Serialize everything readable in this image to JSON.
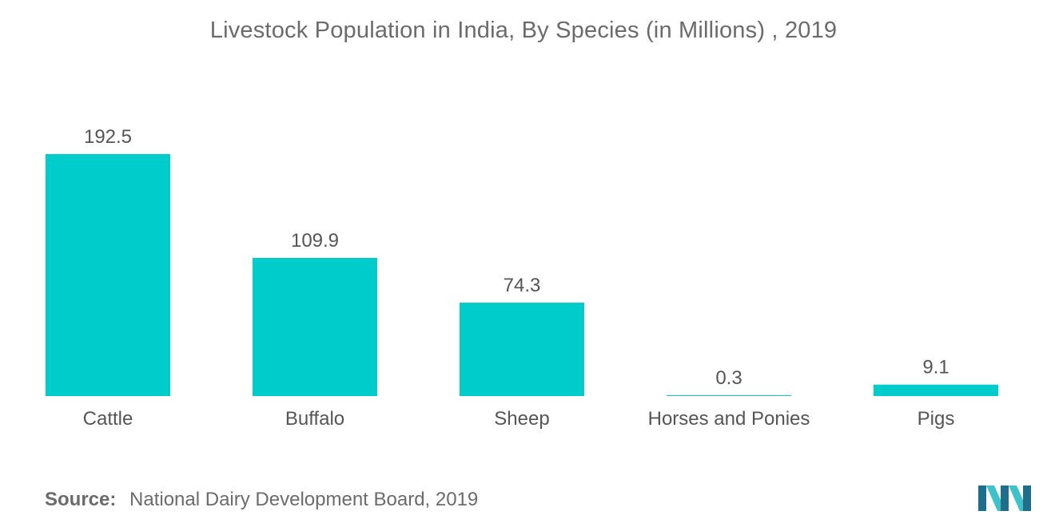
{
  "chart_data": {
    "type": "bar",
    "title": "Livestock Population in India, By Species (in Millions) , 2019",
    "categories": [
      "Cattle",
      "Buffalo",
      "Sheep",
      "Horses and Ponies",
      "Pigs"
    ],
    "values": [
      192.5,
      109.9,
      74.3,
      0.3,
      9.1
    ],
    "value_labels": [
      "192.5",
      "109.9",
      "74.3",
      "0.3",
      "9.1"
    ],
    "xlabel": "",
    "ylabel": "",
    "ylim": [
      0,
      192.5
    ],
    "grid": false,
    "legend": "none",
    "bar_color": "#00cccc"
  },
  "source": {
    "label": "Source:",
    "text": "National Dairy Development Board, 2019"
  },
  "colors": {
    "bar": "#00cccc",
    "logo_dark": "#1f6f8b",
    "logo_light": "#3fc1c9",
    "text": "#555555"
  }
}
